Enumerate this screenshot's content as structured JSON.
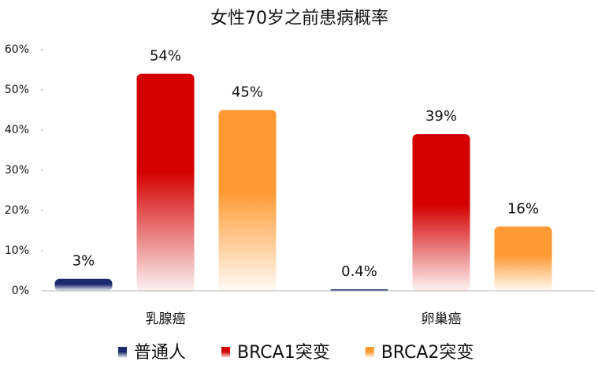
{
  "chart_data": {
    "type": "bar",
    "title": "女性70岁之前患病概率",
    "categories": [
      "乳腺癌",
      "卵巢癌"
    ],
    "series": [
      {
        "name": "普通人",
        "color": "#1a2a6c",
        "values": [
          3,
          0.4
        ],
        "value_labels": [
          "3%",
          "0.4%"
        ]
      },
      {
        "name": "BRCA1突变",
        "color": "#d40000",
        "values": [
          54,
          39
        ],
        "value_labels": [
          "54%",
          "39%"
        ]
      },
      {
        "name": "BRCA2突变",
        "color": "#ff9a33",
        "values": [
          45,
          16
        ],
        "value_labels": [
          "45%",
          "16%"
        ]
      }
    ],
    "ylim": [
      0,
      60
    ],
    "yticks": [
      {
        "value": 0,
        "label": "0%"
      },
      {
        "value": 10,
        "label": "10%"
      },
      {
        "value": 20,
        "label": "20%"
      },
      {
        "value": 30,
        "label": "30%"
      },
      {
        "value": 40,
        "label": "40%"
      },
      {
        "value": 50,
        "label": "50%"
      },
      {
        "value": 60,
        "label": "60%"
      }
    ],
    "grid": false
  }
}
